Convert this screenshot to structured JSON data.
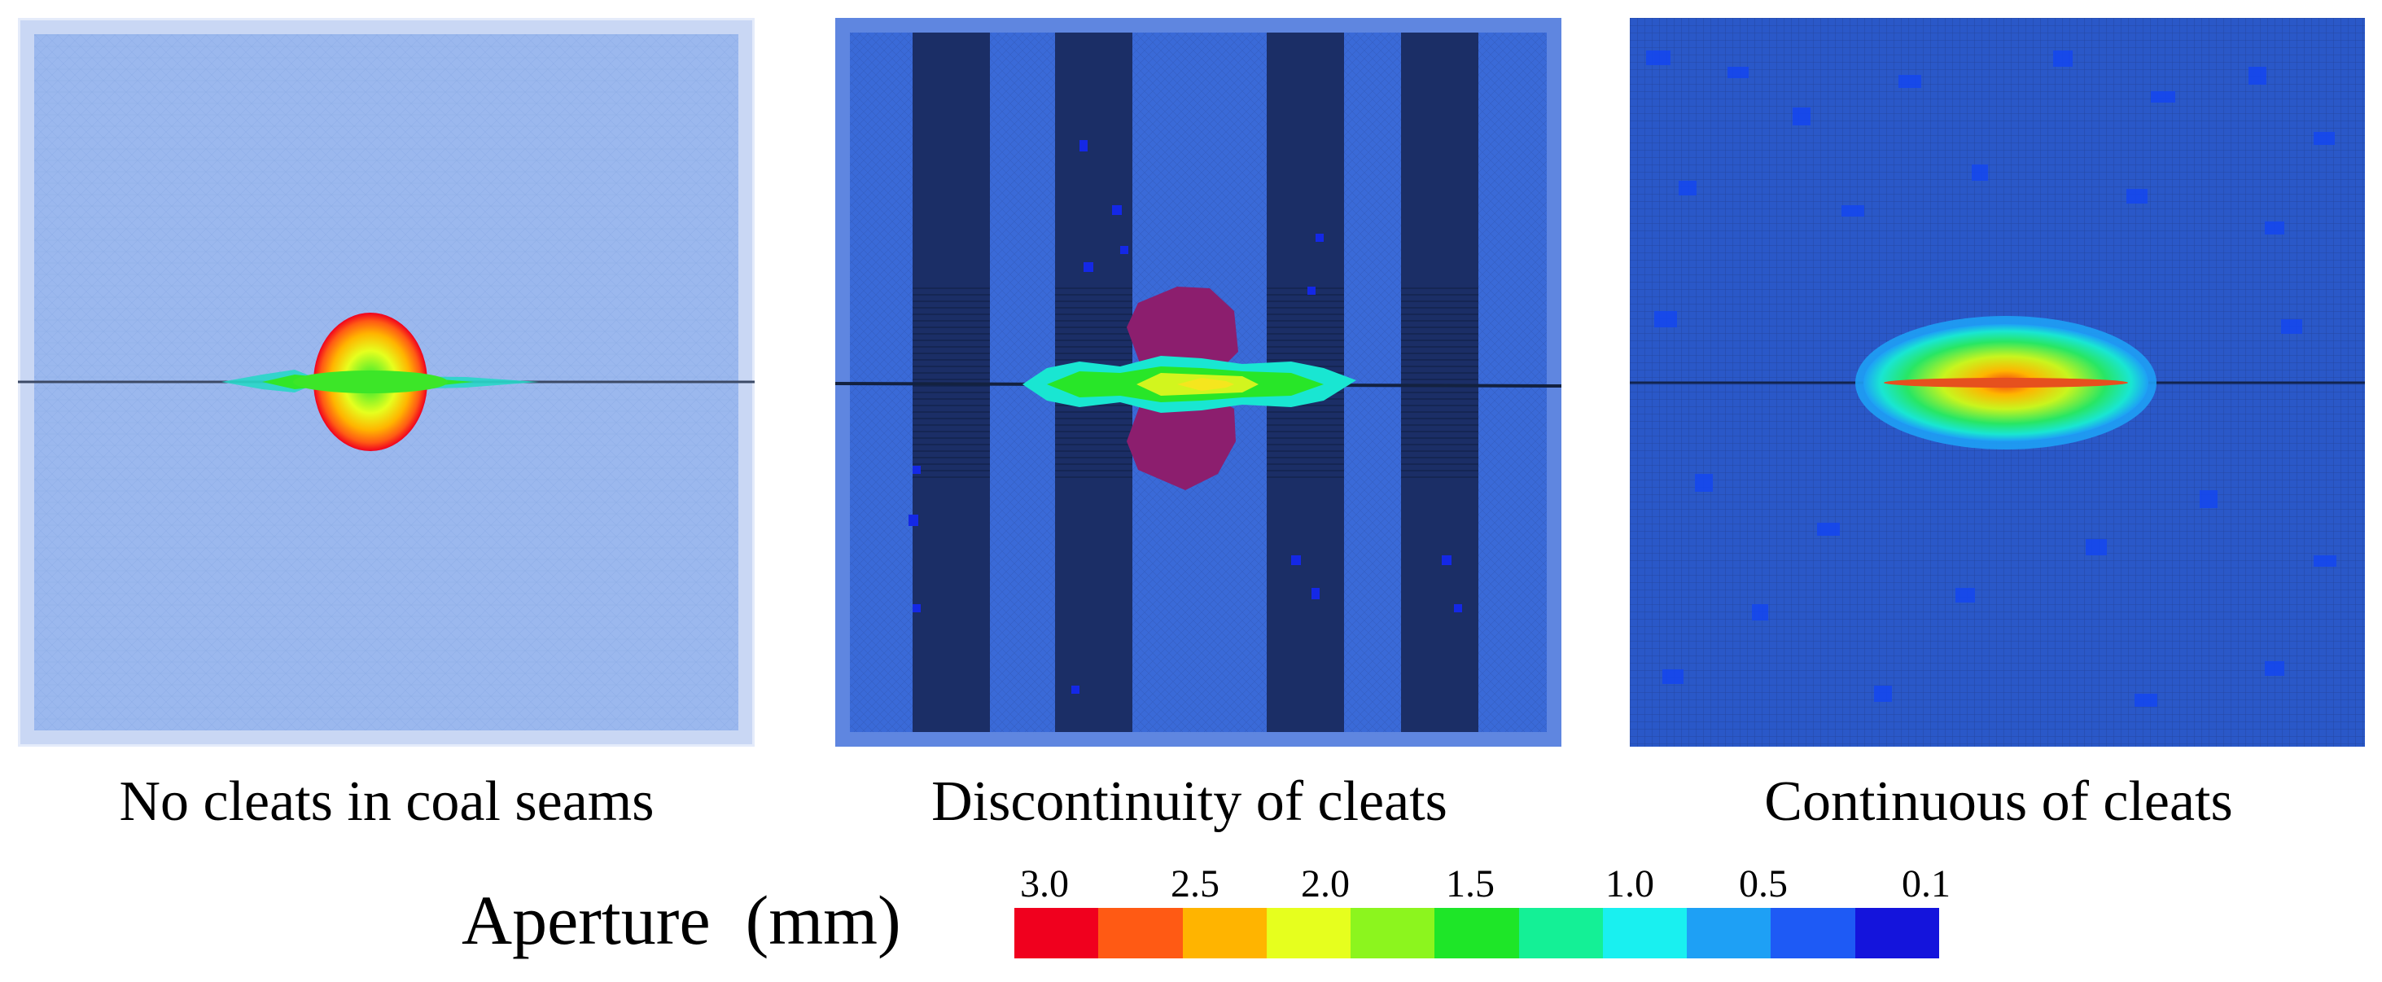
{
  "figure": {
    "panels": [
      {
        "caption": "No cleats in coal seams"
      },
      {
        "caption": "Discontinuity of cleats"
      },
      {
        "caption": "Continuous of cleats"
      }
    ],
    "legend": {
      "title": "Aperture  (mm)",
      "ticks": [
        "3.0",
        "2.5",
        "2.0",
        "1.5",
        "1.0",
        "0.5",
        "0.1"
      ],
      "colors": [
        "#f0001e",
        "#ff5a14",
        "#ffb400",
        "#e6ff1e",
        "#8cf51e",
        "#1ee628",
        "#14f096",
        "#19f0f0",
        "#1ea0f5",
        "#1e5af5",
        "#1414dc"
      ]
    }
  }
}
